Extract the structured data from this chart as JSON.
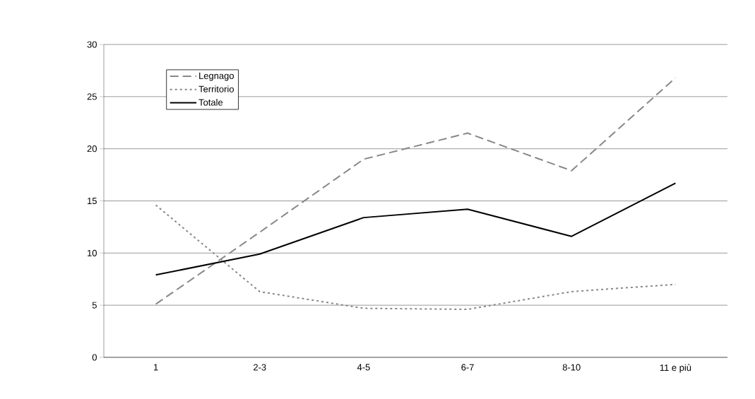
{
  "chart_data": {
    "type": "line",
    "categories": [
      "1",
      "2-3",
      "4-5",
      "6-7",
      "8-10",
      "11 e più"
    ],
    "series": [
      {
        "name": "Legnago",
        "color": "#888888",
        "line_style": "dashed",
        "values": [
          5.1,
          12.0,
          19.0,
          21.5,
          17.9,
          26.8
        ]
      },
      {
        "name": "Territorio",
        "color": "#888888",
        "line_style": "dotted",
        "values": [
          14.6,
          6.3,
          4.7,
          4.6,
          6.3,
          7.0
        ]
      },
      {
        "name": "Totale",
        "color": "#000000",
        "line_style": "solid",
        "values": [
          7.9,
          9.9,
          13.4,
          14.2,
          11.6,
          16.7
        ]
      }
    ],
    "ylim": [
      0,
      30
    ],
    "yticks": [
      0,
      5,
      10,
      15,
      20,
      25,
      30
    ],
    "grid": "y",
    "legend": "top left",
    "marker": "none"
  }
}
